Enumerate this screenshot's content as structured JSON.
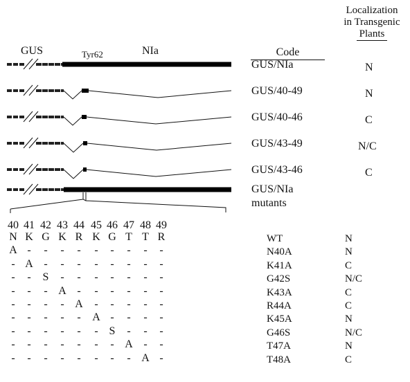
{
  "header": {
    "gus": "GUS",
    "tyr": "Tyr62",
    "nia": "NIa",
    "code": "Code",
    "localization": [
      "Localization",
      "in Transgenic",
      "Plants"
    ]
  },
  "constructs": [
    {
      "code": "GUS/NIa",
      "loc": "N"
    },
    {
      "code": "GUS/40-49",
      "loc": "N"
    },
    {
      "code": "GUS/40-46",
      "loc": "C"
    },
    {
      "code": "GUS/43-49",
      "loc": "N/C"
    },
    {
      "code": "GUS/43-46",
      "loc": "C"
    },
    {
      "code": "GUS/NIa",
      "code2": "mutants",
      "loc": ""
    }
  ],
  "positions": [
    "40",
    "41",
    "42",
    "43",
    "44",
    "45",
    "46",
    "47",
    "48",
    "49"
  ],
  "wt_seq": [
    "N",
    "K",
    "G",
    "K",
    "R",
    "K",
    "G",
    "T",
    "T",
    "R"
  ],
  "mutants": [
    {
      "code": "WT",
      "loc": "N",
      "row": [
        "N",
        "K",
        "G",
        "K",
        "R",
        "K",
        "G",
        "T",
        "T",
        "R"
      ]
    },
    {
      "code": "N40A",
      "loc": "N",
      "row": [
        "A",
        "-",
        "-",
        "-",
        "-",
        "-",
        "-",
        "-",
        "-",
        "-"
      ]
    },
    {
      "code": "K41A",
      "loc": "C",
      "row": [
        "-",
        "A",
        "-",
        "-",
        "-",
        "-",
        "-",
        "-",
        "-",
        "-"
      ]
    },
    {
      "code": "G42S",
      "loc": "N/C",
      "row": [
        "-",
        "-",
        "S",
        "-",
        "-",
        "-",
        "-",
        "-",
        "-",
        "-"
      ]
    },
    {
      "code": "K43A",
      "loc": "C",
      "row": [
        "-",
        "-",
        "-",
        "A",
        "-",
        "-",
        "-",
        "-",
        "-",
        "-"
      ]
    },
    {
      "code": "R44A",
      "loc": "C",
      "row": [
        "-",
        "-",
        "-",
        "-",
        "A",
        "-",
        "-",
        "-",
        "-",
        "-"
      ]
    },
    {
      "code": "K45A",
      "loc": "N",
      "row": [
        "-",
        "-",
        "-",
        "-",
        "-",
        "A",
        "-",
        "-",
        "-",
        "-"
      ]
    },
    {
      "code": "G46S",
      "loc": "N/C",
      "row": [
        "-",
        "-",
        "-",
        "-",
        "-",
        "-",
        "S",
        "-",
        "-",
        "-"
      ]
    },
    {
      "code": "T47A",
      "loc": "N",
      "row": [
        "-",
        "-",
        "-",
        "-",
        "-",
        "-",
        "-",
        "A",
        "-",
        "-"
      ]
    },
    {
      "code": "T48A",
      "loc": "C",
      "row": [
        "-",
        "-",
        "-",
        "-",
        "-",
        "-",
        "-",
        "-",
        "A",
        "-"
      ]
    }
  ]
}
